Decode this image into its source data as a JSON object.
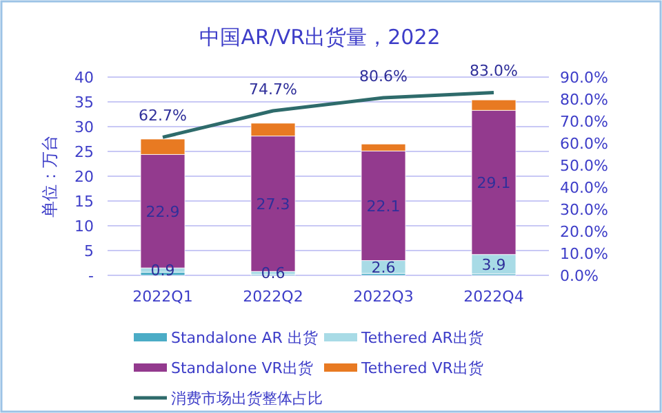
{
  "chart_data": {
    "type": "bar",
    "title": "中国AR/VR出货量，2022",
    "ylabel": "单位：万台",
    "stacked": true,
    "categories": [
      "2022Q1",
      "2022Q2",
      "2022Q3",
      "2022Q4"
    ],
    "series": [
      {
        "name": "Standalone AR 出货",
        "color": "#4bacc6",
        "values": [
          0.6,
          0.2,
          0.4,
          0.3
        ]
      },
      {
        "name": "Tethered AR出货",
        "color": "#a8dbe6",
        "values": [
          0.9,
          0.6,
          2.6,
          3.9
        ],
        "value_labels": [
          "0.9",
          "0.6",
          "2.6",
          "3.9"
        ]
      },
      {
        "name": "Standalone VR出货",
        "color": "#933a8e",
        "values": [
          22.9,
          27.3,
          22.1,
          29.1
        ],
        "value_labels": [
          "22.9",
          "27.3",
          "22.1",
          "29.1"
        ]
      },
      {
        "name": "Tethered VR出货",
        "color": "#e87a22",
        "values": [
          3.1,
          2.6,
          1.4,
          2.1
        ]
      },
      {
        "name": "消费市场出货整体占比",
        "type": "line",
        "axis": "y2",
        "color": "#2e6b6b",
        "values": [
          62.7,
          74.7,
          80.6,
          83.0
        ],
        "value_labels": [
          "62.7%",
          "74.7%",
          "80.6%",
          "83.0%"
        ]
      }
    ],
    "ylim": [
      0,
      40
    ],
    "yticks": [
      {
        "value": 0,
        "label": "-"
      },
      5,
      10,
      15,
      20,
      25,
      30,
      35,
      40
    ],
    "y2lim": [
      0,
      90
    ],
    "y2ticks": [
      {
        "value": 0,
        "label": "0.0%"
      },
      {
        "value": 10,
        "label": "10.0%"
      },
      {
        "value": 20,
        "label": "20.0%"
      },
      {
        "value": 30,
        "label": "30.0%"
      },
      {
        "value": 40,
        "label": "40.0%"
      },
      {
        "value": 50,
        "label": "50.0%"
      },
      {
        "value": 60,
        "label": "60.0%"
      },
      {
        "value": 70,
        "label": "70.0%"
      },
      {
        "value": 80,
        "label": "80.0%"
      },
      {
        "value": 90,
        "label": "90.0%"
      }
    ],
    "grid": "y",
    "legend": "bottom"
  }
}
